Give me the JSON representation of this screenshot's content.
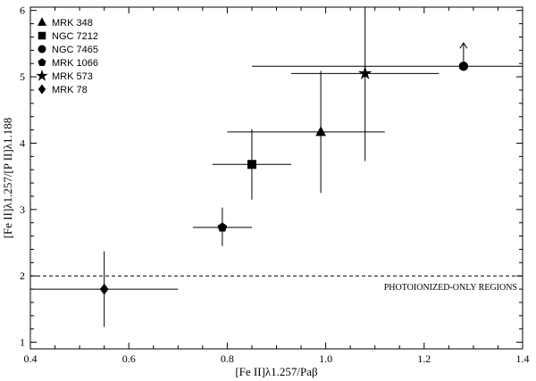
{
  "chart_data": {
    "type": "scatter",
    "xlabel": "[Fe II]λ1.257/Paβ",
    "ylabel": "[Fe II]λ1.257/[P II]λ1.188",
    "xlim": [
      0.4,
      1.4
    ],
    "ylim": [
      0.9,
      6.05
    ],
    "xticks": [
      0.4,
      0.6,
      0.8,
      1.0,
      1.2,
      1.4
    ],
    "xtick_labels": [
      "0.4",
      "0.6",
      "0.8",
      "1.0",
      "1.2",
      "1.4"
    ],
    "yticks": [
      1,
      2,
      3,
      4,
      5,
      6
    ],
    "ytick_labels": [
      "1",
      "2",
      "3",
      "4",
      "5",
      "6"
    ],
    "legend_position": "top-left",
    "grid": false,
    "series": [
      {
        "name": "MRK 348",
        "marker": "triangle",
        "x": 0.99,
        "y": 4.17,
        "xerr": [
          0.19,
          0.13
        ],
        "yerr": [
          0.92,
          0.92
        ]
      },
      {
        "name": "NGC 7212",
        "marker": "square",
        "x": 0.85,
        "y": 3.68,
        "xerr": [
          0.08,
          0.08
        ],
        "yerr": [
          0.53,
          0.53
        ]
      },
      {
        "name": "NGC 7465",
        "marker": "circle",
        "x": 1.28,
        "y": 5.16,
        "xerr": [
          0.43,
          0.12
        ],
        "yerr": [
          0,
          0
        ],
        "lower_limit_y": true
      },
      {
        "name": "MRK 1066",
        "marker": "pentagon",
        "x": 0.79,
        "y": 2.73,
        "xerr": [
          0.06,
          0.06
        ],
        "yerr": [
          0.28,
          0.3
        ]
      },
      {
        "name": "MRK 573",
        "marker": "star",
        "x": 1.08,
        "y": 5.05,
        "xerr": [
          0.15,
          0.15
        ],
        "yerr": [
          1.32,
          1.05
        ]
      },
      {
        "name": "MRK 78",
        "marker": "diamond",
        "x": 0.55,
        "y": 1.8,
        "xerr": [
          0.15,
          0.15
        ],
        "yerr": [
          0.57,
          0.57
        ]
      }
    ],
    "reference_line": {
      "y": 2.0,
      "style": "dashed",
      "label": "PHOTOIONIZED-ONLY REGIONS"
    }
  }
}
